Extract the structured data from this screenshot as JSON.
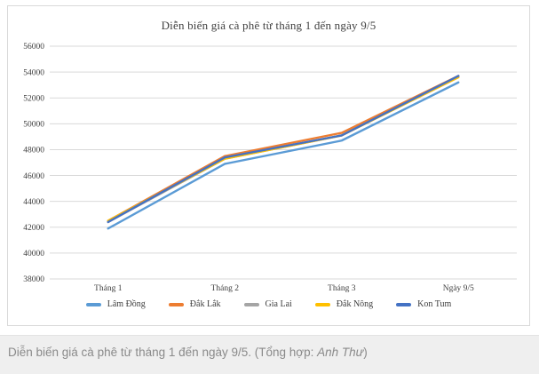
{
  "chart_data": {
    "type": "line",
    "title": "Diễn biến giá cà phê từ tháng 1 đến ngày 9/5",
    "categories": [
      "Tháng 1",
      "Tháng 2",
      "Tháng 3",
      "Ngày 9/5"
    ],
    "series": [
      {
        "name": "Lâm Đồng",
        "color": "#5B9BD5",
        "values": [
          41900,
          46900,
          48700,
          53200
        ]
      },
      {
        "name": "Đắk Lắk",
        "color": "#ED7D31",
        "values": [
          42500,
          47500,
          49300,
          53700
        ]
      },
      {
        "name": "Gia Lai",
        "color": "#A5A5A5",
        "values": [
          42400,
          47300,
          49100,
          53600
        ]
      },
      {
        "name": "Đắk Nông",
        "color": "#FFC000",
        "values": [
          42500,
          47300,
          49100,
          53600
        ]
      },
      {
        "name": "Kon Tum",
        "color": "#4472C4",
        "values": [
          42400,
          47400,
          49100,
          53700
        ]
      }
    ],
    "ylim": [
      38000,
      56000
    ],
    "ytick_step": 2000,
    "ytick_labels": [
      "38000",
      "40000",
      "42000",
      "44000",
      "46000",
      "48000",
      "50000",
      "52000",
      "54000",
      "56000"
    ],
    "grid": true,
    "legend_position": "bottom",
    "ylabel": "",
    "xlabel": ""
  },
  "caption": {
    "text": "Diễn biến giá cà phê từ tháng 1 đến ngày 9/5. (Tổng hợp: ",
    "credit": "Anh Thư",
    "suffix": ")"
  },
  "colors": {
    "gridline": "#d9d9d9",
    "chart_border": "#d9d9d9",
    "chart_text": "#404040",
    "caption_bg": "#efefef",
    "caption_text": "#8a8a8a"
  }
}
